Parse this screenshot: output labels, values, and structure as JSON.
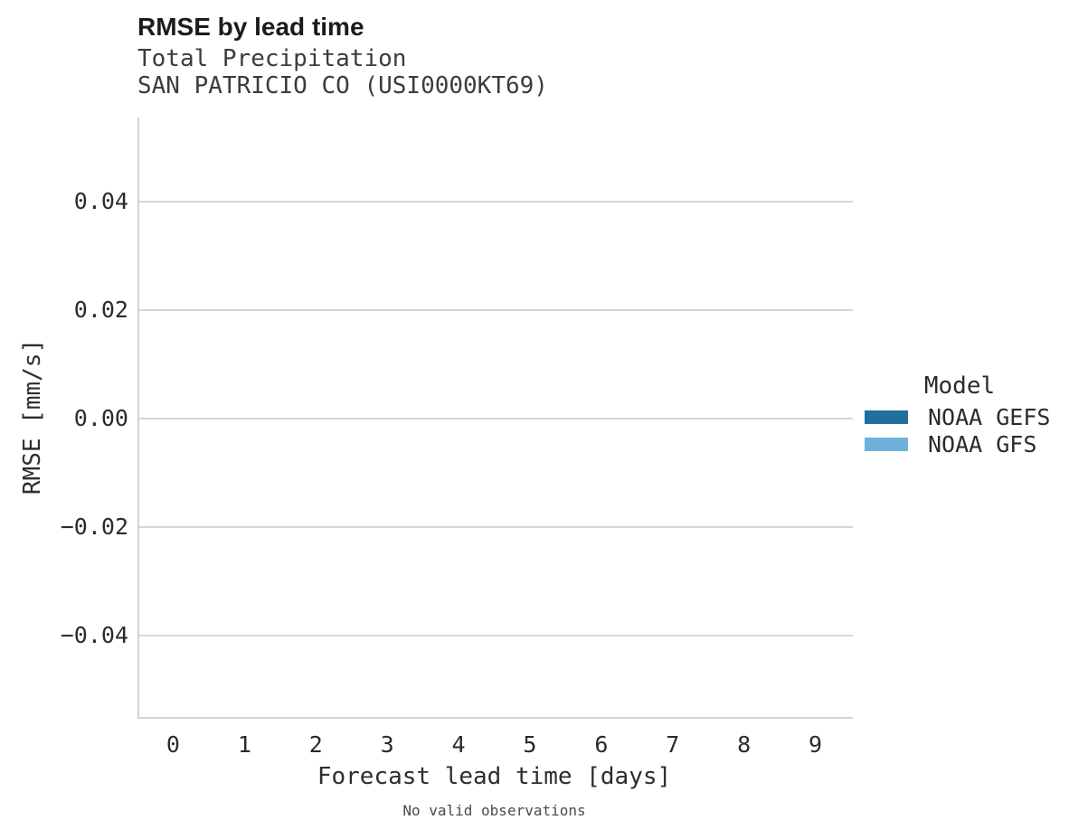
{
  "header": {
    "title": "RMSE by lead time",
    "subtitle_line1": "Total Precipitation",
    "subtitle_line2": "SAN PATRICIO CO (USI0000KT69)"
  },
  "axes": {
    "x_label": "Forecast lead time [days]",
    "y_label": "RMSE [mm/s]"
  },
  "caption": "No valid observations",
  "legend": {
    "title": "Model",
    "entries": [
      {
        "label": "NOAA GEFS",
        "color": "#20709e"
      },
      {
        "label": "NOAA GFS",
        "color": "#70b1dc"
      }
    ]
  },
  "colors": {
    "background": "#ffffff",
    "axis_line": "#d2d2d2",
    "gridline": "#d6d6d6",
    "title_text": "#1b1b1b",
    "subtitle_text": "#3c3c3c",
    "tick_text": "#2b2b2b",
    "caption_text": "#4b4b4b",
    "series_dark_blue": "#20709e",
    "series_light_blue": "#70b1dc"
  },
  "chart_data": {
    "type": "line",
    "title": "RMSE by lead time",
    "subtitle": "Total Precipitation / SAN PATRICIO CO (USI0000KT69)",
    "xlabel": "Forecast lead time [days]",
    "ylabel": "RMSE [mm/s]",
    "x": [
      0,
      1,
      2,
      3,
      4,
      5,
      6,
      7,
      8,
      9
    ],
    "xtick_labels": [
      "0",
      "1",
      "2",
      "3",
      "4",
      "5",
      "6",
      "7",
      "8",
      "9"
    ],
    "ytick_values": [
      0.04,
      0.02,
      0.0,
      -0.02,
      -0.04
    ],
    "ytick_labels": [
      "0.04",
      "0.02",
      "0.00",
      "−0.02",
      "−0.04"
    ],
    "ylim": [
      -0.055,
      0.0555
    ],
    "grid": "horizontal-only",
    "legend_position": "right",
    "legend_title": "Model",
    "series": [
      {
        "name": "NOAA GEFS",
        "color": "#20709e",
        "values": []
      },
      {
        "name": "NOAA GFS",
        "color": "#70b1dc",
        "values": []
      }
    ],
    "annotation": "No valid observations (plot area is empty, no data drawn)"
  }
}
